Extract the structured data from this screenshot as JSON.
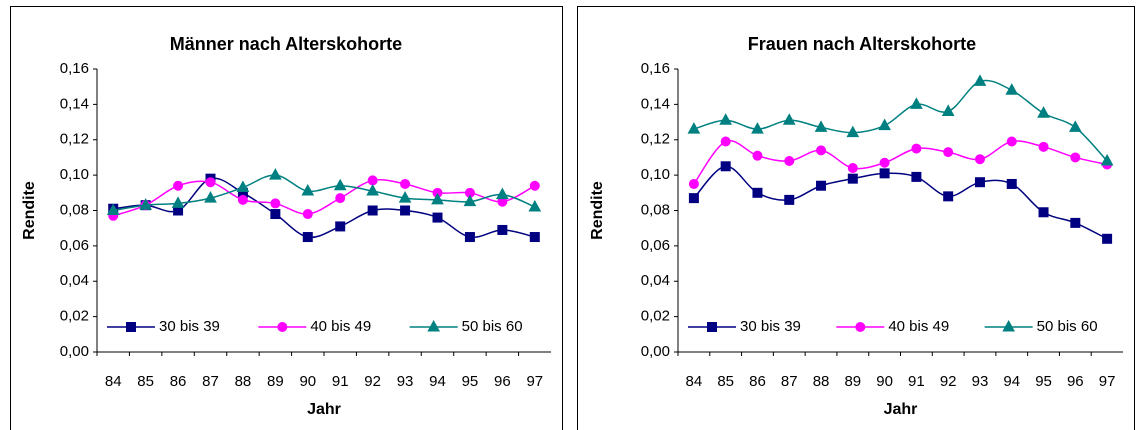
{
  "chart_data": [
    {
      "type": "line",
      "title": "Männer nach Alterskohorte",
      "x_label": "Jahr",
      "y_label": "Rendite",
      "categories": [
        "84",
        "85",
        "86",
        "87",
        "88",
        "89",
        "90",
        "91",
        "92",
        "93",
        "94",
        "95",
        "96",
        "97"
      ],
      "series": [
        {
          "name": "30 bis 39",
          "color": "#000080",
          "marker": "square",
          "values": [
            0.081,
            0.083,
            0.08,
            0.098,
            0.09,
            0.078,
            0.065,
            0.071,
            0.08,
            0.08,
            0.076,
            0.065,
            0.069,
            0.065
          ]
        },
        {
          "name": "40 bis 49",
          "color": "#ff00ff",
          "marker": "circle",
          "values": [
            0.077,
            0.083,
            0.094,
            0.096,
            0.086,
            0.084,
            0.078,
            0.087,
            0.097,
            0.095,
            0.09,
            0.09,
            0.085,
            0.094
          ]
        },
        {
          "name": "50 bis 60",
          "color": "#008080",
          "marker": "triangle",
          "values": [
            0.08,
            0.083,
            0.084,
            0.087,
            0.093,
            0.1,
            0.091,
            0.094,
            0.091,
            0.087,
            0.086,
            0.085,
            0.089,
            0.082
          ]
        }
      ],
      "ylim": [
        0,
        0.16
      ],
      "yticks": [
        {
          "value": 0,
          "label": "0,00"
        },
        {
          "value": 0.02,
          "label": "0,02"
        },
        {
          "value": 0.04,
          "label": "0,04"
        },
        {
          "value": 0.06,
          "label": "0,06"
        },
        {
          "value": 0.08,
          "label": "0,08"
        },
        {
          "value": 0.1,
          "label": "0,10"
        },
        {
          "value": 0.12,
          "label": "0,12"
        },
        {
          "value": 0.14,
          "label": "0,14"
        },
        {
          "value": 0.16,
          "label": "0,16"
        }
      ],
      "legend": "lower center",
      "smooth": true
    },
    {
      "type": "line",
      "title": "Frauen nach Alterskohorte",
      "x_label": "Jahr",
      "y_label": "Rendite",
      "categories": [
        "84",
        "85",
        "86",
        "87",
        "88",
        "89",
        "90",
        "91",
        "92",
        "93",
        "94",
        "95",
        "96",
        "97"
      ],
      "series": [
        {
          "name": "30 bis 39",
          "color": "#000080",
          "marker": "square",
          "values": [
            0.087,
            0.105,
            0.09,
            0.086,
            0.094,
            0.098,
            0.101,
            0.099,
            0.088,
            0.096,
            0.095,
            0.079,
            0.073,
            0.064
          ]
        },
        {
          "name": "40 bis 49",
          "color": "#ff00ff",
          "marker": "circle",
          "values": [
            0.095,
            0.119,
            0.111,
            0.108,
            0.114,
            0.104,
            0.107,
            0.115,
            0.113,
            0.109,
            0.119,
            0.116,
            0.11,
            0.106
          ]
        },
        {
          "name": "50 bis 60",
          "color": "#008080",
          "marker": "triangle",
          "values": [
            0.126,
            0.131,
            0.126,
            0.131,
            0.127,
            0.124,
            0.128,
            0.14,
            0.136,
            0.153,
            0.148,
            0.135,
            0.127,
            0.108
          ]
        }
      ],
      "ylim": [
        0,
        0.16
      ],
      "yticks": [
        {
          "value": 0,
          "label": "0,00"
        },
        {
          "value": 0.02,
          "label": "0,02"
        },
        {
          "value": 0.04,
          "label": "0,04"
        },
        {
          "value": 0.06,
          "label": "0,06"
        },
        {
          "value": 0.08,
          "label": "0,08"
        },
        {
          "value": 0.1,
          "label": "0,10"
        },
        {
          "value": 0.12,
          "label": "0,12"
        },
        {
          "value": 0.14,
          "label": "0,14"
        },
        {
          "value": 0.16,
          "label": "0,16"
        }
      ],
      "legend": "lower center",
      "smooth": true
    }
  ]
}
